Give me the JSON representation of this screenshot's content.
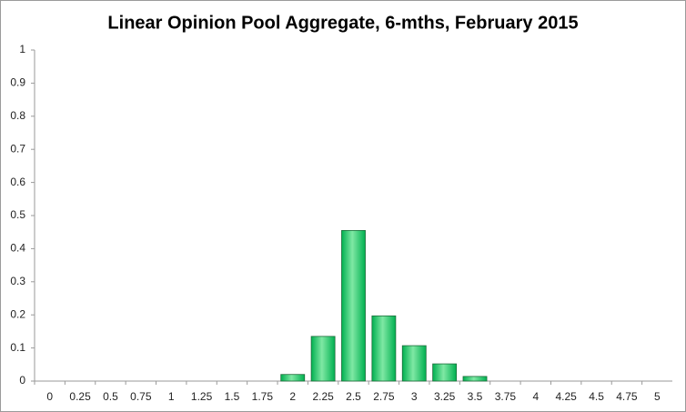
{
  "chart_data": {
    "type": "bar",
    "title": "Linear Opinion Pool Aggregate, 6-mths, February 2015",
    "categories": [
      "0",
      "0.25",
      "0.5",
      "0.75",
      "1",
      "1.25",
      "1.5",
      "1.75",
      "2",
      "2.25",
      "2.5",
      "2.75",
      "3",
      "3.25",
      "3.5",
      "3.75",
      "4",
      "4.25",
      "4.5",
      "4.75",
      "5"
    ],
    "values": [
      0,
      0,
      0,
      0,
      0,
      0,
      0,
      0,
      0.02,
      0.135,
      0.455,
      0.197,
      0.107,
      0.052,
      0.014,
      0,
      0,
      0,
      0,
      0,
      0
    ],
    "color": "#00b050",
    "ylim": [
      0,
      1
    ],
    "yticks": [
      0,
      0.1,
      0.2,
      0.3,
      0.4,
      0.5,
      0.6,
      0.7,
      0.8,
      0.9,
      1
    ],
    "grid": false
  }
}
